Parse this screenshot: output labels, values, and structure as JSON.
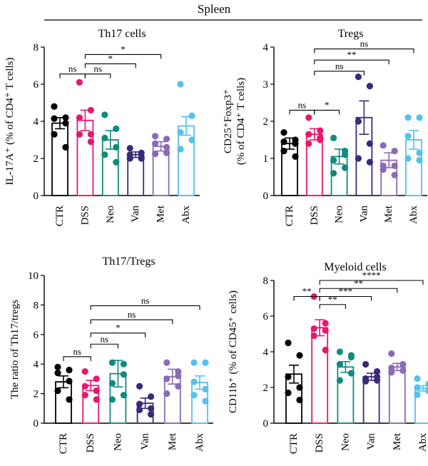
{
  "figure_title": "Spleen",
  "chart_data": [
    {
      "type": "bar",
      "title": "Th17 cells",
      "ylabel": "IL-17A⁺ (% of CD4⁺ T cells)",
      "ylim": [
        0,
        8
      ],
      "yticks": [
        0,
        2,
        4,
        6,
        8
      ],
      "categories": [
        "CTR",
        "DSS",
        "Neo",
        "Van",
        "Met",
        "Abx"
      ],
      "values": [
        3.9,
        4.05,
        3.0,
        2.2,
        2.65,
        3.75
      ],
      "errors": [
        0.3,
        0.55,
        0.5,
        0.15,
        0.25,
        0.5
      ],
      "points": [
        [
          4.8,
          4.2,
          4.15,
          3.9,
          3.3,
          2.6
        ],
        [
          6.1,
          4.6,
          4.2,
          3.3,
          3.3,
          2.9
        ],
        [
          4.35,
          3.6,
          3.1,
          2.6,
          2.2,
          1.8
        ],
        [
          2.55,
          2.3,
          2.2,
          2.05,
          2.0,
          2.0
        ],
        [
          3.2,
          3.05,
          2.8,
          2.3,
          2.25,
          2.6
        ],
        [
          6.0,
          4.3,
          3.4,
          3.0,
          2.5,
          3.0
        ]
      ],
      "comparisons": [
        {
          "from": "CTR",
          "to": "DSS",
          "label": "ns",
          "y": 6.55
        },
        {
          "from": "DSS",
          "to": "Neo",
          "label": "ns",
          "y": 6.55
        },
        {
          "from": "DSS",
          "to": "Van",
          "label": "*",
          "y": 7.1
        },
        {
          "from": "DSS",
          "to": "Met",
          "label": "*",
          "y": 7.6
        }
      ]
    },
    {
      "type": "bar",
      "title": "Tregs",
      "ylabel_lines": [
        "CD25⁺Foxp3⁺",
        "(% of CD4⁺ T cells)"
      ],
      "ylim": [
        0,
        4
      ],
      "yticks": [
        0,
        1,
        2,
        3,
        4
      ],
      "categories": [
        "CTR",
        "DSS",
        "Neo",
        "Van",
        "Met",
        "Abx"
      ],
      "values": [
        1.4,
        1.65,
        1.05,
        2.1,
        0.95,
        1.5
      ],
      "errors": [
        0.15,
        0.15,
        0.2,
        0.45,
        0.2,
        0.25
      ],
      "points": [
        [
          1.7,
          1.5,
          1.45,
          1.4,
          1.2,
          1.05
        ],
        [
          2.1,
          1.75,
          1.65,
          1.55,
          1.4,
          1.5
        ],
        [
          1.55,
          1.2,
          0.95,
          0.75,
          0.6,
          1.1
        ],
        [
          3.2,
          2.95,
          2.0,
          1.4,
          1.0,
          0.9
        ],
        [
          1.35,
          1.2,
          0.8,
          0.55,
          0.7,
          0.8
        ],
        [
          2.1,
          2.1,
          1.6,
          1.15,
          1.0,
          0.95
        ]
      ],
      "comparisons": [
        {
          "from": "CTR",
          "to": "DSS",
          "label": "ns",
          "y": 2.3
        },
        {
          "from": "DSS",
          "to": "Neo",
          "label": "*",
          "y": 2.3
        },
        {
          "from": "DSS",
          "to": "Van",
          "label": "ns",
          "y": 3.35
        },
        {
          "from": "DSS",
          "to": "Met",
          "label": "**",
          "y": 3.65
        },
        {
          "from": "DSS",
          "to": "Abx",
          "label": "ns",
          "y": 3.95
        }
      ]
    },
    {
      "type": "bar",
      "title": "Th17/Tregs",
      "ylabel": "The ratio of Th17/tregs",
      "ylim": [
        0,
        10
      ],
      "yticks": [
        0,
        2,
        4,
        6,
        8,
        10
      ],
      "categories": [
        "CTR",
        "DSS",
        "Neo",
        "Van",
        "Met",
        "Abx"
      ],
      "values": [
        2.8,
        2.55,
        3.35,
        1.35,
        3.15,
        2.75
      ],
      "errors": [
        0.4,
        0.35,
        0.9,
        0.35,
        0.5,
        0.45
      ],
      "points": [
        [
          3.8,
          3.6,
          3.4,
          2.85,
          2.2,
          1.6
        ],
        [
          3.5,
          3.0,
          2.5,
          2.2,
          1.9,
          1.6
        ],
        [
          4.1,
          3.3,
          2.7,
          1.9,
          1.6,
          4.0
        ],
        [
          2.5,
          1.8,
          1.3,
          1.0,
          0.9,
          0.6
        ],
        [
          4.1,
          3.5,
          3.0,
          2.5,
          2.0,
          3.2
        ],
        [
          4.1,
          4.1,
          2.8,
          2.3,
          1.9,
          1.5
        ]
      ],
      "comparisons": [
        {
          "from": "CTR",
          "to": "DSS",
          "label": "ns",
          "y": 4.5
        },
        {
          "from": "DSS",
          "to": "Neo",
          "label": "ns",
          "y": 5.35
        },
        {
          "from": "DSS",
          "to": "Van",
          "label": "*",
          "y": 6.1
        },
        {
          "from": "DSS",
          "to": "Met",
          "label": "ns",
          "y": 7.0
        },
        {
          "from": "DSS",
          "to": "Abx",
          "label": "ns",
          "y": 7.95
        }
      ]
    },
    {
      "type": "bar",
      "title": "Myeloid cells",
      "ylabel": "CD11b⁺ (% of CD45⁺ cells)",
      "ylim": [
        0,
        8
      ],
      "yticks": [
        0,
        2,
        4,
        6,
        8
      ],
      "categories": [
        "CTR",
        "DSS",
        "Neo",
        "Van",
        "Met",
        "Abx"
      ],
      "values": [
        2.75,
        5.35,
        3.15,
        2.6,
        3.15,
        1.95
      ],
      "errors": [
        0.5,
        0.45,
        0.3,
        0.2,
        0.2,
        0.15
      ],
      "points": [
        [
          4.5,
          3.8,
          2.6,
          2.0,
          1.7,
          1.3
        ],
        [
          7.1,
          5.6,
          5.3,
          5.2,
          4.9,
          4.1
        ],
        [
          4.0,
          3.7,
          3.3,
          2.8,
          2.4,
          3.8
        ],
        [
          3.3,
          2.6,
          2.5,
          2.4,
          2.35,
          2.9
        ],
        [
          3.9,
          3.3,
          3.1,
          2.95,
          2.85,
          3.3
        ],
        [
          2.5,
          2.2,
          2.0,
          1.8,
          1.6,
          1.9
        ]
      ],
      "comparisons": [
        {
          "from": "CTR",
          "to": "DSS",
          "label": "**",
          "y": 7.1
        },
        {
          "from": "DSS",
          "to": "Neo",
          "label": "**",
          "y": 6.65
        },
        {
          "from": "DSS",
          "to": "Van",
          "label": "***",
          "y": 7.1
        },
        {
          "from": "DSS",
          "to": "Met",
          "label": "**",
          "y": 7.55
        },
        {
          "from": "DSS",
          "to": "Abx",
          "label": "****",
          "y": 8.0
        }
      ]
    }
  ],
  "group_colors": [
    "#000000",
    "#e8176e",
    "#138a7e",
    "#3b2a78",
    "#8a6bb6",
    "#53c2ec"
  ]
}
